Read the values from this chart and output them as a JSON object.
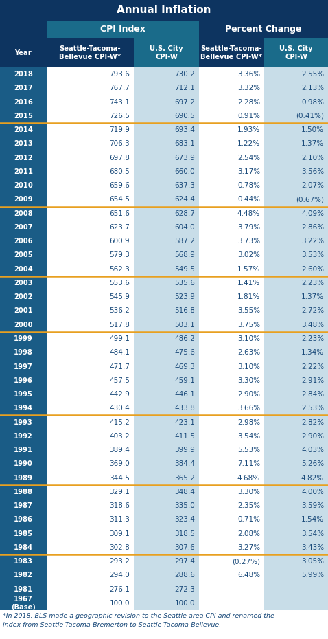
{
  "title": "Annual Inflation",
  "col_header1": "CPI Index",
  "col_header2": "Percent Change",
  "col_headers": [
    "Year",
    "Seattle-Tacoma-\nBellevue CPI-W*",
    "U.S. City\nCPI-W",
    "Seattle-Tacoma-\nBellevue CPI-W*",
    "U.S. City\nCPI-W"
  ],
  "rows": [
    [
      "2018",
      "793.6",
      "730.2",
      "3.36%",
      "2.55%"
    ],
    [
      "2017",
      "767.7",
      "712.1",
      "3.32%",
      "2.13%"
    ],
    [
      "2016",
      "743.1",
      "697.2",
      "2.28%",
      "0.98%"
    ],
    [
      "2015",
      "726.5",
      "690.5",
      "0.91%",
      "(0.41%)"
    ],
    [
      "2014",
      "719.9",
      "693.4",
      "1.93%",
      "1.50%"
    ],
    [
      "2013",
      "706.3",
      "683.1",
      "1.22%",
      "1.37%"
    ],
    [
      "2012",
      "697.8",
      "673.9",
      "2.54%",
      "2.10%"
    ],
    [
      "2011",
      "680.5",
      "660.0",
      "3.17%",
      "3.56%"
    ],
    [
      "2010",
      "659.6",
      "637.3",
      "0.78%",
      "2.07%"
    ],
    [
      "2009",
      "654.5",
      "624.4",
      "0.44%",
      "(0.67%)"
    ],
    [
      "2008",
      "651.6",
      "628.7",
      "4.48%",
      "4.09%"
    ],
    [
      "2007",
      "623.7",
      "604.0",
      "3.79%",
      "2.86%"
    ],
    [
      "2006",
      "600.9",
      "587.2",
      "3.73%",
      "3.22%"
    ],
    [
      "2005",
      "579.3",
      "568.9",
      "3.02%",
      "3.53%"
    ],
    [
      "2004",
      "562.3",
      "549.5",
      "1.57%",
      "2.60%"
    ],
    [
      "2003",
      "553.6",
      "535.6",
      "1.41%",
      "2.23%"
    ],
    [
      "2002",
      "545.9",
      "523.9",
      "1.81%",
      "1.37%"
    ],
    [
      "2001",
      "536.2",
      "516.8",
      "3.55%",
      "2.72%"
    ],
    [
      "2000",
      "517.8",
      "503.1",
      "3.75%",
      "3.48%"
    ],
    [
      "1999",
      "499.1",
      "486.2",
      "3.10%",
      "2.23%"
    ],
    [
      "1998",
      "484.1",
      "475.6",
      "2.63%",
      "1.34%"
    ],
    [
      "1997",
      "471.7",
      "469.3",
      "3.10%",
      "2.22%"
    ],
    [
      "1996",
      "457.5",
      "459.1",
      "3.30%",
      "2.91%"
    ],
    [
      "1995",
      "442.9",
      "446.1",
      "2.90%",
      "2.84%"
    ],
    [
      "1994",
      "430.4",
      "433.8",
      "3.66%",
      "2.53%"
    ],
    [
      "1993",
      "415.2",
      "423.1",
      "2.98%",
      "2.82%"
    ],
    [
      "1992",
      "403.2",
      "411.5",
      "3.54%",
      "2.90%"
    ],
    [
      "1991",
      "389.4",
      "399.9",
      "5.53%",
      "4.03%"
    ],
    [
      "1990",
      "369.0",
      "384.4",
      "7.11%",
      "5.26%"
    ],
    [
      "1989",
      "344.5",
      "365.2",
      "4.68%",
      "4.82%"
    ],
    [
      "1988",
      "329.1",
      "348.4",
      "3.30%",
      "4.00%"
    ],
    [
      "1987",
      "318.6",
      "335.0",
      "2.35%",
      "3.59%"
    ],
    [
      "1986",
      "311.3",
      "323.4",
      "0.71%",
      "1.54%"
    ],
    [
      "1985",
      "309.1",
      "318.5",
      "2.08%",
      "3.54%"
    ],
    [
      "1984",
      "302.8",
      "307.6",
      "3.27%",
      "3.43%"
    ],
    [
      "1983",
      "293.2",
      "297.4",
      "(0.27%)",
      "3.05%"
    ],
    [
      "1982",
      "294.0",
      "288.6",
      "6.48%",
      "5.99%"
    ],
    [
      "1981",
      "276.1",
      "272.3",
      "",
      ""
    ],
    [
      "1967\n(Base)",
      "100.0",
      "100.0",
      "",
      ""
    ]
  ],
  "separator_after": [
    "2015",
    "2009",
    "2004",
    "2000",
    "1994",
    "1989",
    "1984"
  ],
  "footnote_line1": "*In 2018, BLS made a geographic revision to the Seattle area CPI and renamed the",
  "footnote_line2": "index from Seattle-Tacoma-Bremerton to Seattle-Tacoma-Bellevue.",
  "title_bg": "#0d3460",
  "subheader1_bg": "#1a6b8a",
  "subheader2_bg": "#0d3460",
  "col2_bg": "#1a6b8a",
  "col4_bg": "#1a6b8a",
  "year_col_bg": "#1a5c86",
  "white_col_bg": "#ffffff",
  "light_blue_col_bg": "#c8dde8",
  "separator_color": "#e8a020",
  "title_color": "#ffffff",
  "header_color": "#ffffff",
  "data_color": "#1a4a7a",
  "year_color": "#ffffff",
  "footnote_color": "#1a4a7a"
}
